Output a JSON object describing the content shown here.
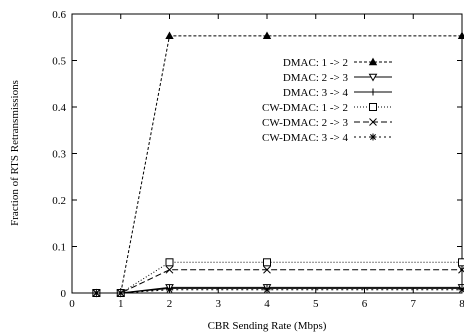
{
  "chart_data": {
    "type": "line",
    "title": "",
    "xlabel": "CBR Sending Rate (Mbps)",
    "ylabel": "Fraction of RTS Retransmissions",
    "xlim": [
      0,
      8
    ],
    "ylim": [
      0,
      0.6
    ],
    "xticks": [
      0,
      1,
      2,
      3,
      4,
      5,
      6,
      7,
      8
    ],
    "yticks": [
      0,
      0.1,
      0.2,
      0.3,
      0.4,
      0.5,
      0.6
    ],
    "grid": false,
    "legend_position": "top-right",
    "x": [
      0.5,
      1,
      2,
      4,
      8
    ],
    "series": [
      {
        "name": "DMAC: 1 -> 2",
        "marker": "filled-triangle",
        "dash": "3,2",
        "values": [
          0,
          0,
          0.553,
          0.553,
          0.553
        ]
      },
      {
        "name": "DMAC: 2 -> 3",
        "marker": "open-triangle-down",
        "dash": "",
        "values": [
          0,
          0,
          0.012,
          0.012,
          0.012
        ]
      },
      {
        "name": "DMAC: 3 -> 4",
        "marker": "plus",
        "dash": "",
        "values": [
          0,
          0,
          0.01,
          0.01,
          0.01
        ]
      },
      {
        "name": "CW-DMAC: 1 -> 2",
        "marker": "open-square",
        "dash": "1,2",
        "values": [
          0,
          0,
          0.066,
          0.066,
          0.066
        ]
      },
      {
        "name": "CW-DMAC: 2 -> 3",
        "marker": "x",
        "dash": "6,3",
        "values": [
          0,
          0,
          0.05,
          0.05,
          0.05
        ]
      },
      {
        "name": "CW-DMAC: 3 -> 4",
        "marker": "asterisk",
        "dash": "2,3",
        "values": [
          0,
          0,
          0.007,
          0.007,
          0.007
        ]
      }
    ]
  }
}
